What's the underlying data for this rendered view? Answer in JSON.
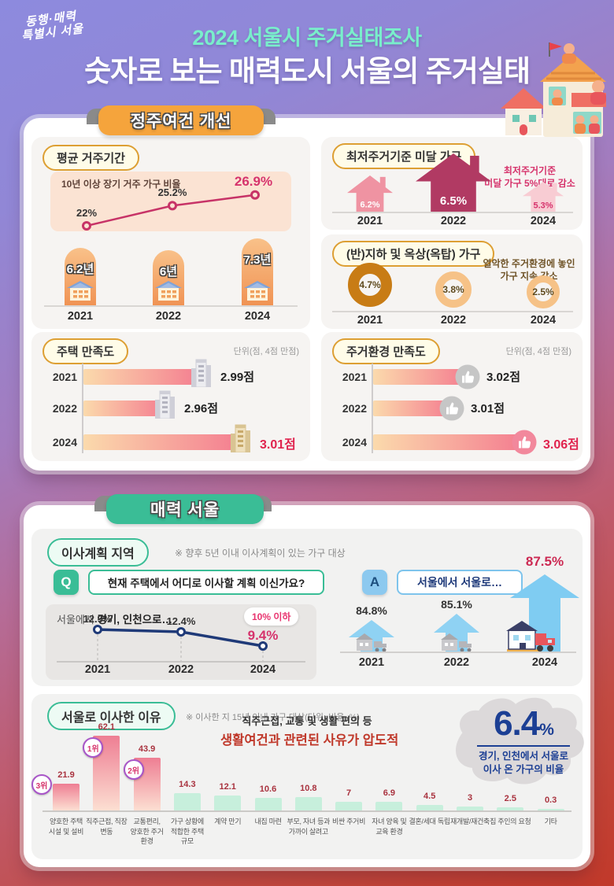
{
  "header": {
    "logo_line1": "동행·매력",
    "logo_line2": "특별시 서울",
    "title_small": "2024 서울시 주거실태조사",
    "title_large": "숫자로 보는 매력도시 서울의 주거실태"
  },
  "s1": {
    "ribbon": "정주여건 개선",
    "avg": {
      "pill": "평균 거주기간",
      "chart_label": "10년 이상 장기 거주 가구 비율"
    },
    "sub": {
      "pill": "최저주거기준 미달 가구",
      "note": "최저주거기준\n미달 가구 5%대로 감소"
    },
    "base": {
      "pill": "(반)지하 및 옥상(옥탑) 가구",
      "note": "열악한 주거환경에 놓인\n가구 지속 감소"
    },
    "hsat": {
      "pill": "주택 만족도",
      "unit": "단위(점, 4점 만점)"
    },
    "esat": {
      "pill": "주거환경 만족도",
      "unit": "단위(점, 4점 만점)"
    }
  },
  "s2": {
    "ribbon": "매력 서울",
    "plan": {
      "pill": "이사계획 지역",
      "note": "※ 향후 5년 이내 이사계획이 있는 가구 대상",
      "q_label": "Q",
      "question": "현재 주택에서 어디로 이사할 계획 이신가요?",
      "out_prefix": "서울에서 ",
      "out_bold": "경기, 인천으로…",
      "out_badge": "10% 이하",
      "a_label": "A",
      "answer": "서울에서 서울로…"
    },
    "reason": {
      "pill": "서울로 이사한 이유",
      "note": "※ 이사한 지 15년 이내 가구 대상(단위: 비율, %)",
      "ann1": "직주근접, 교통 및 생활 편의 등",
      "ann2": "생활여건과 관련된 사유가 압도적",
      "stat_value": "6.4",
      "stat_unit": "%",
      "stat_desc": "경기, 인천에서 서울로\n이사 온 가구의 비율"
    }
  },
  "chart_data": [
    {
      "id": "long_residence_line",
      "type": "line",
      "title": "10년 이상 장기 거주 가구 비율",
      "x": [
        "2021",
        "2022",
        "2024"
      ],
      "values": [
        22,
        25.2,
        26.9
      ],
      "unit": "%",
      "value_labels": [
        "22%",
        "25.2%",
        "26.9%"
      ],
      "highlight_last": true
    },
    {
      "id": "avg_residence_years",
      "type": "bar",
      "title": "평균 거주기간",
      "categories": [
        "2021",
        "2022",
        "2024"
      ],
      "values": [
        6.2,
        6,
        7.3
      ],
      "unit": "년",
      "value_labels": [
        "6.2년",
        "6년",
        "7.3년"
      ]
    },
    {
      "id": "substandard_households",
      "type": "pictogram-house",
      "title": "최저주거기준 미달 가구",
      "categories": [
        "2021",
        "2022",
        "2024"
      ],
      "values": [
        6.2,
        6.5,
        5.3
      ],
      "unit": "%",
      "value_labels": [
        "6.2%",
        "6.5%",
        "5.3%"
      ],
      "note": "최저주거기준 미달 가구 5%대로 감소"
    },
    {
      "id": "basement_rooftop",
      "type": "donut",
      "title": "(반)지하 및 옥상(옥탑) 가구",
      "categories": [
        "2021",
        "2022",
        "2024"
      ],
      "values": [
        4.7,
        3.8,
        2.5
      ],
      "unit": "%",
      "value_labels": [
        "4.7%",
        "3.8%",
        "2.5%"
      ],
      "note": "열악한 주거환경에 놓인 가구 지속 감소"
    },
    {
      "id": "house_satisfaction",
      "type": "bar-horizontal",
      "title": "주택 만족도",
      "unit_label": "단위(점, 4점 만점)",
      "categories": [
        "2021",
        "2022",
        "2024"
      ],
      "values": [
        2.99,
        2.96,
        3.01
      ],
      "value_labels": [
        "2.99점",
        "2.96점",
        "3.01점"
      ],
      "max": 4
    },
    {
      "id": "env_satisfaction",
      "type": "bar-horizontal",
      "title": "주거환경 만족도",
      "unit_label": "단위(점, 4점 만점)",
      "categories": [
        "2021",
        "2022",
        "2024"
      ],
      "values": [
        3.02,
        3.01,
        3.06
      ],
      "value_labels": [
        "3.02점",
        "3.01점",
        "3.06점"
      ],
      "max": 4
    },
    {
      "id": "move_out_line",
      "type": "line",
      "title": "서울에서 경기, 인천으로…",
      "x": [
        "2021",
        "2022",
        "2024"
      ],
      "values": [
        12.9,
        12.4,
        9.4
      ],
      "unit": "%",
      "value_labels": [
        "12.9%",
        "12.4%",
        "9.4%"
      ],
      "badge": "10% 이하"
    },
    {
      "id": "move_within_seoul",
      "type": "pictogram-arrow",
      "title": "서울에서 서울로…",
      "categories": [
        "2021",
        "2022",
        "2024"
      ],
      "values": [
        84.8,
        85.1,
        87.5
      ],
      "unit": "%",
      "value_labels": [
        "84.8%",
        "85.1%",
        "87.5%"
      ]
    },
    {
      "id": "move_reason",
      "type": "bar",
      "title": "서울로 이사한 이유",
      "note": "이사한 지 15년 이내 가구 대상(단위: 비율, %)",
      "categories": [
        "양호한 주택\n시설 및 설비",
        "직주근접, 직장\n변동",
        "교통편리,\n양호한 주거\n환경",
        "가구 상황에\n적합한 주택\n규모",
        "계약 만기",
        "내집 마련",
        "부모, 자녀 등과\n가까이 살려고",
        "비싼 주거비",
        "자녀 양육 및\n교육 환경",
        "결혼/세대 독립",
        "재개발/재건축",
        "집 주인의 요청",
        "기타"
      ],
      "values": [
        21.9,
        62.1,
        43.9,
        14.3,
        12.1,
        10.6,
        10.8,
        7,
        6.9,
        4.5,
        3,
        2.5,
        0.3
      ],
      "value_labels": [
        "21.9",
        "62.1",
        "43.9",
        "14.3",
        "12.1",
        "10.6",
        "10.8",
        "7",
        "6.9",
        "4.5",
        "3",
        "2.5",
        "0.3"
      ],
      "ranks": [
        {
          "category_index": 1,
          "label": "1위"
        },
        {
          "category_index": 2,
          "label": "2위"
        },
        {
          "category_index": 0,
          "label": "3위"
        }
      ]
    },
    {
      "id": "moved_from_metro",
      "type": "stat",
      "value": 6.4,
      "unit": "%",
      "label": "경기, 인천에서 서울로 이사 온 가구의 비율"
    }
  ]
}
